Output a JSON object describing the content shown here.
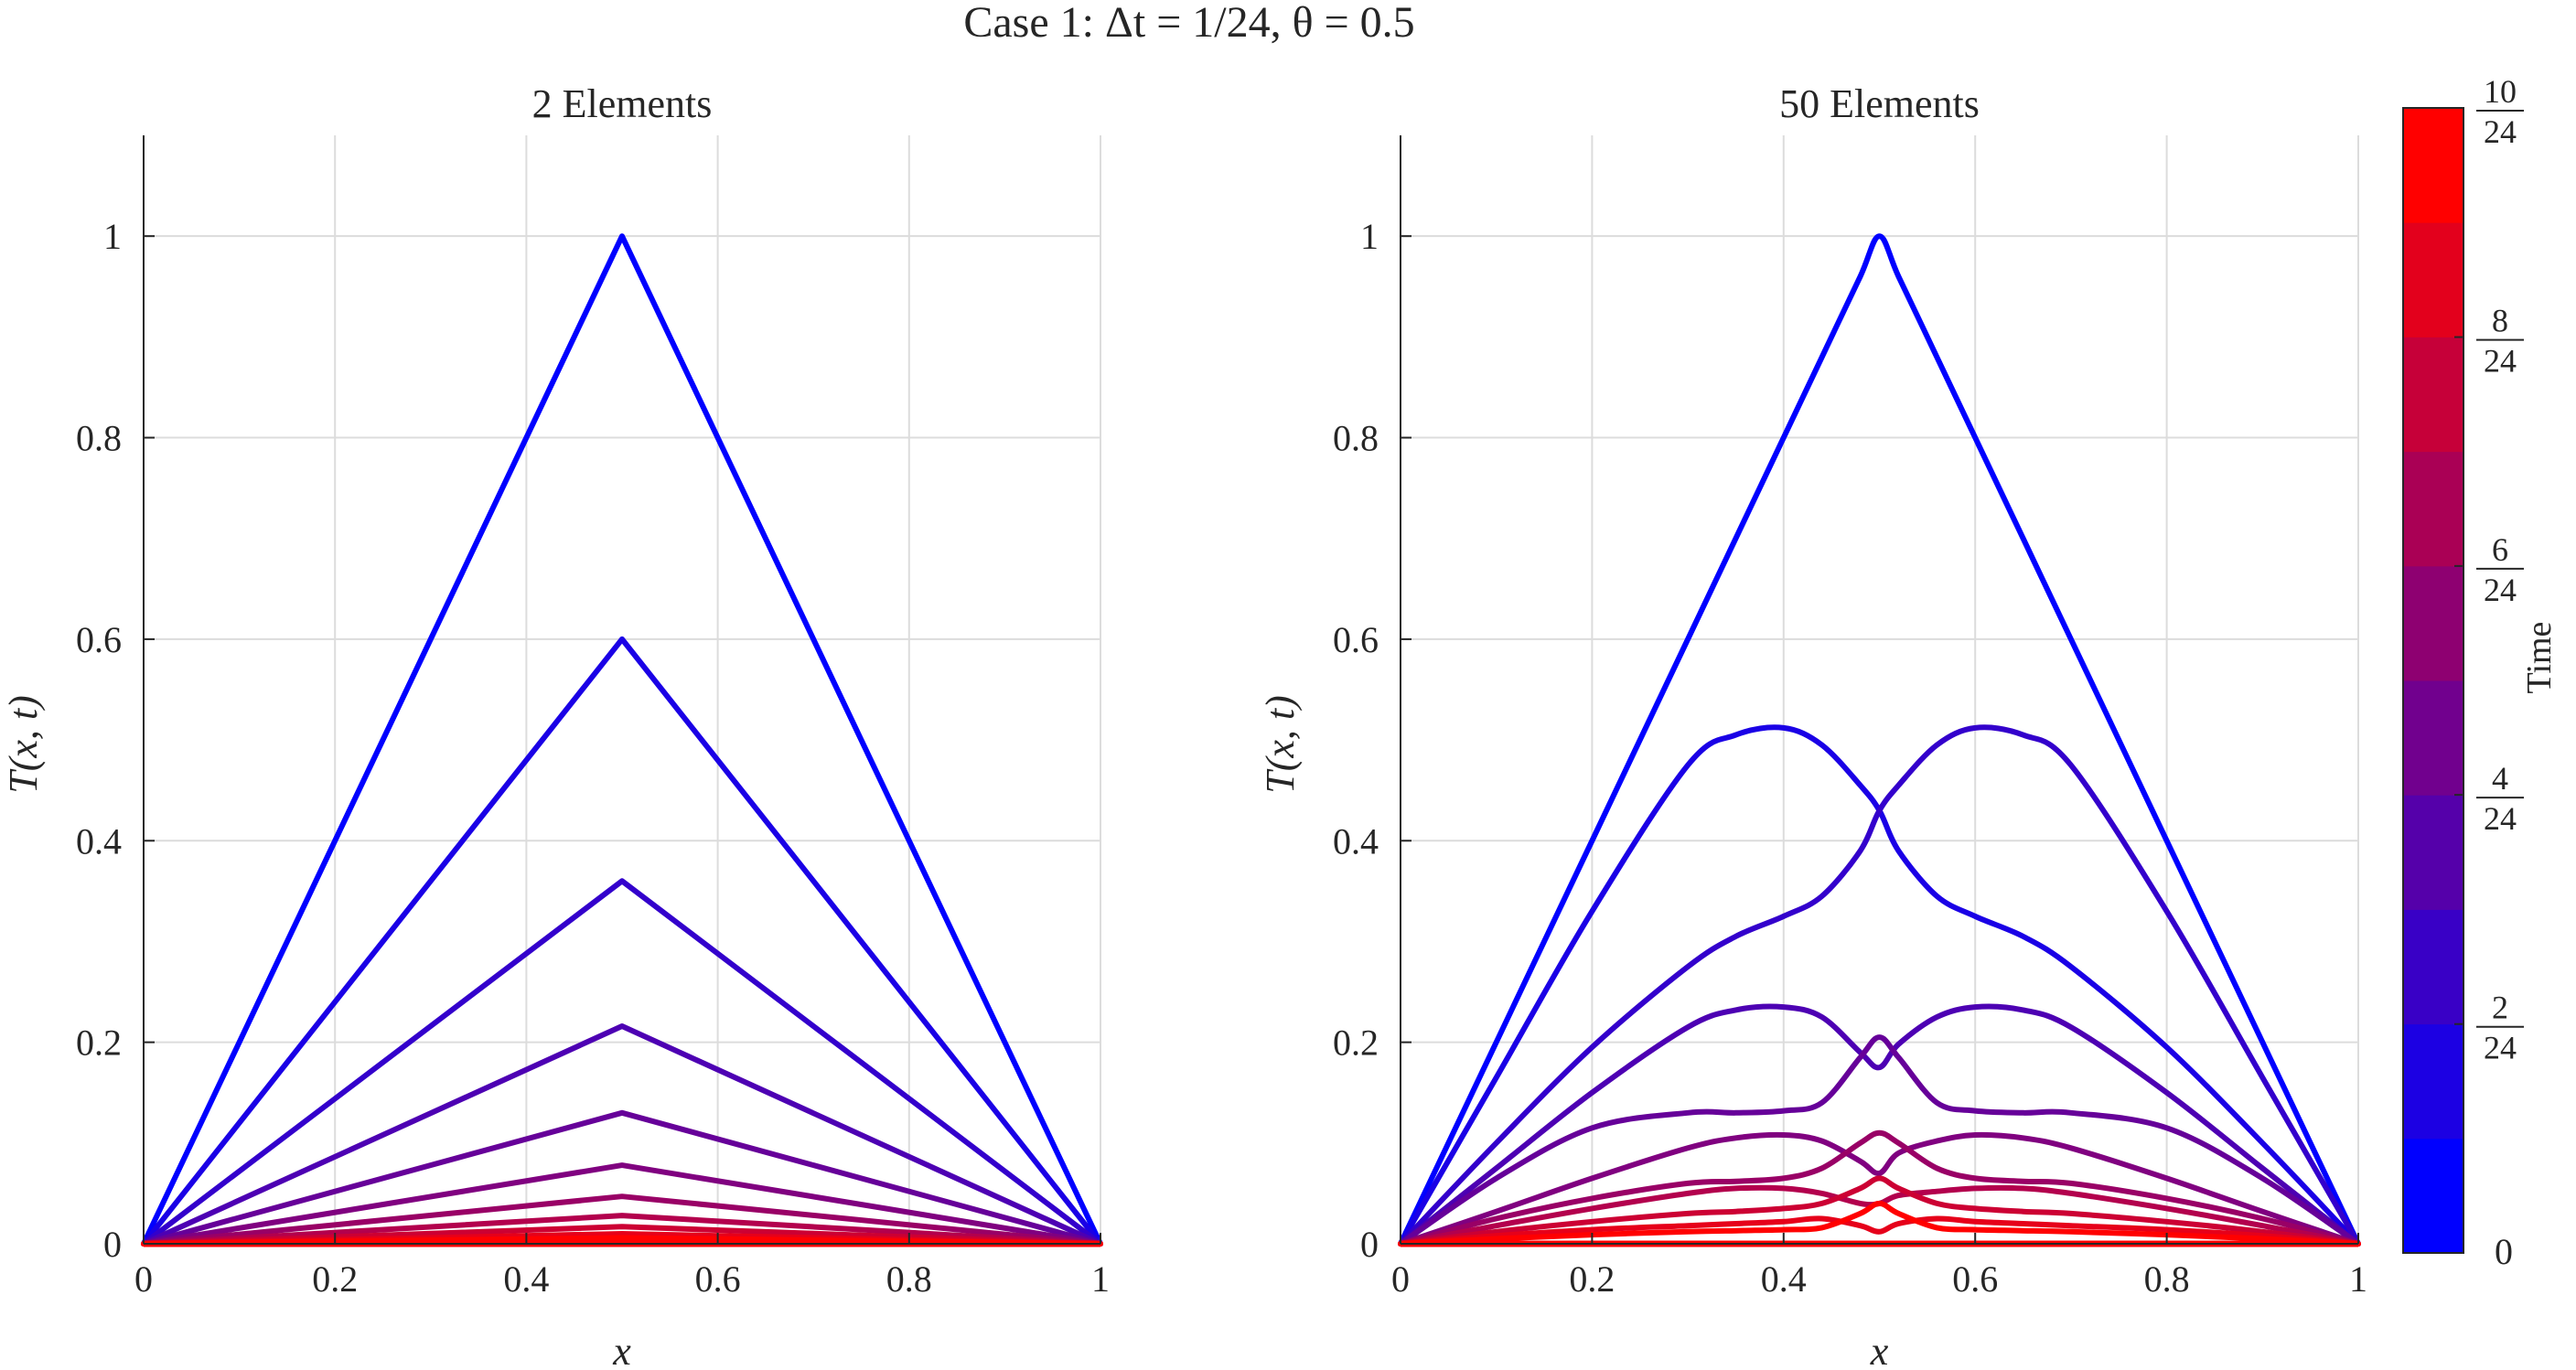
{
  "figure": {
    "suptitle": "Case 1: Δt = 1/24, θ = 0.5"
  },
  "colorbar": {
    "label": "Time",
    "bottom_label": "0",
    "tick_labels": [
      {
        "num": "2",
        "den": "24",
        "value": 0.0833
      },
      {
        "num": "4",
        "den": "24",
        "value": 0.1667
      },
      {
        "num": "6",
        "den": "24",
        "value": 0.25
      },
      {
        "num": "8",
        "den": "24",
        "value": 0.3333
      },
      {
        "num": "10",
        "den": "24",
        "value": 0.4167
      }
    ],
    "range": [
      0,
      0.4167
    ],
    "levels": 10,
    "color_start": "#0000ff",
    "color_end": "#ff0000"
  },
  "chart_data": [
    {
      "type": "line",
      "title": "2 Elements",
      "xlabel": "x",
      "ylabel": "T(x, t)",
      "xlim": [
        0,
        1
      ],
      "ylim": [
        0,
        1.1
      ],
      "xticks": [
        "0",
        "0.2",
        "0.4",
        "0.6",
        "0.8",
        "1"
      ],
      "yticks": [
        "0",
        "0.2",
        "0.4",
        "0.6",
        "0.8",
        "1"
      ],
      "grid": true,
      "x": [
        0,
        0.5,
        1
      ],
      "series": [
        {
          "values": [
            0,
            1.0,
            0
          ]
        },
        {
          "values": [
            0,
            0.6,
            0
          ]
        },
        {
          "values": [
            0,
            0.36,
            0
          ]
        },
        {
          "values": [
            0,
            0.216,
            0
          ]
        },
        {
          "values": [
            0,
            0.13,
            0
          ]
        },
        {
          "values": [
            0,
            0.078,
            0
          ]
        },
        {
          "values": [
            0,
            0.047,
            0
          ]
        },
        {
          "values": [
            0,
            0.028,
            0
          ]
        },
        {
          "values": [
            0,
            0.017,
            0
          ]
        },
        {
          "values": [
            0,
            0.01,
            0
          ]
        },
        {
          "values": [
            0,
            0.006,
            0
          ]
        }
      ]
    },
    {
      "type": "line",
      "title": "50 Elements",
      "xlabel": "x",
      "ylabel": "T(x, t)",
      "xlim": [
        0,
        1
      ],
      "ylim": [
        0,
        1.1
      ],
      "xticks": [
        "0",
        "0.2",
        "0.4",
        "0.6",
        "0.8",
        "1"
      ],
      "yticks": [
        "0",
        "0.2",
        "0.4",
        "0.6",
        "0.8",
        "1"
      ],
      "grid": true,
      "x": [
        0,
        0.1,
        0.2,
        0.3,
        0.35,
        0.4,
        0.44,
        0.48,
        0.5,
        0.52,
        0.56,
        0.6,
        0.65,
        0.7,
        0.8,
        0.9,
        1.0
      ],
      "series": [
        {
          "values": [
            0,
            0.2,
            0.4,
            0.6,
            0.7,
            0.8,
            0.88,
            0.96,
            1.0,
            0.96,
            0.88,
            0.8,
            0.7,
            0.6,
            0.4,
            0.2,
            0
          ]
        },
        {
          "values": [
            0,
            0.165,
            0.33,
            0.475,
            0.505,
            0.512,
            0.495,
            0.455,
            0.43,
            0.39,
            0.345,
            0.325,
            0.305,
            0.275,
            0.195,
            0.1,
            0
          ]
        },
        {
          "values": [
            0,
            0.165,
            0.33,
            0.475,
            0.505,
            0.512,
            0.495,
            0.455,
            0.43,
            0.39,
            0.345,
            0.325,
            0.305,
            0.275,
            0.195,
            0.1,
            0
          ],
          "mirror": true
        },
        {
          "values": [
            0,
            0.075,
            0.15,
            0.215,
            0.232,
            0.235,
            0.225,
            0.19,
            0.175,
            0.198,
            0.225,
            0.235,
            0.232,
            0.215,
            0.15,
            0.075,
            0
          ]
        },
        {
          "values": [
            0,
            0.065,
            0.115,
            0.13,
            0.13,
            0.132,
            0.14,
            0.185,
            0.205,
            0.185,
            0.14,
            0.132,
            0.13,
            0.13,
            0.115,
            0.065,
            0
          ]
        },
        {
          "values": [
            0,
            0.032,
            0.065,
            0.095,
            0.105,
            0.108,
            0.102,
            0.082,
            0.07,
            0.09,
            0.102,
            0.108,
            0.105,
            0.095,
            0.065,
            0.032,
            0
          ]
        },
        {
          "values": [
            0,
            0.025,
            0.045,
            0.06,
            0.062,
            0.065,
            0.075,
            0.1,
            0.11,
            0.1,
            0.075,
            0.065,
            0.062,
            0.06,
            0.045,
            0.025,
            0
          ]
        },
        {
          "values": [
            0,
            0.018,
            0.035,
            0.05,
            0.055,
            0.055,
            0.05,
            0.04,
            0.04,
            0.048,
            0.052,
            0.055,
            0.055,
            0.05,
            0.035,
            0.018,
            0
          ]
        },
        {
          "values": [
            0,
            0.012,
            0.022,
            0.03,
            0.032,
            0.035,
            0.04,
            0.055,
            0.065,
            0.055,
            0.04,
            0.035,
            0.032,
            0.03,
            0.022,
            0.012,
            0
          ]
        },
        {
          "values": [
            0,
            0.008,
            0.014,
            0.018,
            0.02,
            0.022,
            0.025,
            0.018,
            0.012,
            0.02,
            0.025,
            0.022,
            0.02,
            0.018,
            0.014,
            0.008,
            0
          ]
        },
        {
          "values": [
            0,
            0.005,
            0.009,
            0.012,
            0.013,
            0.014,
            0.016,
            0.03,
            0.04,
            0.03,
            0.016,
            0.014,
            0.013,
            0.012,
            0.009,
            0.005,
            0
          ]
        }
      ]
    }
  ]
}
